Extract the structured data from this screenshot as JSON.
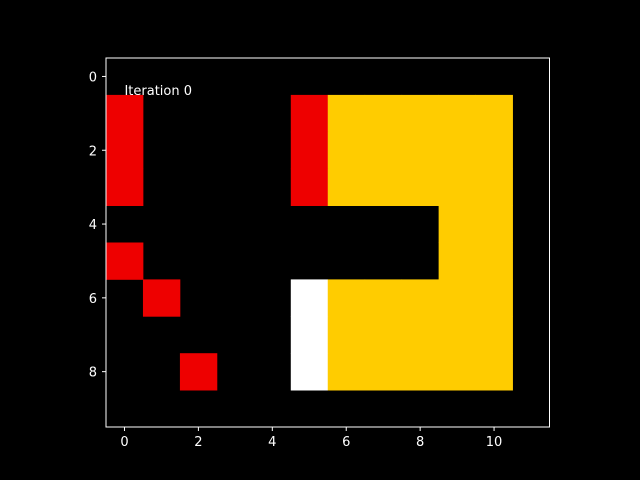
{
  "chart_data": {
    "type": "heatmap",
    "title": "",
    "xlabel": "",
    "ylabel": "",
    "annotation": "Iteration 0",
    "annotation_pos": [
      0,
      0.5
    ],
    "xlim": [
      -0.5,
      11.5
    ],
    "ylim": [
      -0.5,
      9.5
    ],
    "y_inverted": true,
    "x_ticks": [
      0,
      2,
      4,
      6,
      8,
      10
    ],
    "y_ticks": [
      0,
      2,
      4,
      6,
      8
    ],
    "background": "#000000",
    "colors": {
      "1": "#ee0000",
      "2": "#ffcc00",
      "3": "#ffffff"
    },
    "grid": [
      [
        0,
        0,
        0,
        0,
        0,
        0,
        0,
        0,
        0,
        0,
        0
      ],
      [
        1,
        0,
        0,
        0,
        0,
        1,
        2,
        2,
        2,
        2,
        2
      ],
      [
        1,
        0,
        0,
        0,
        0,
        1,
        2,
        2,
        2,
        2,
        2
      ],
      [
        1,
        0,
        0,
        0,
        0,
        1,
        2,
        2,
        2,
        2,
        2
      ],
      [
        0,
        0,
        0,
        0,
        0,
        0,
        0,
        0,
        0,
        2,
        2
      ],
      [
        1,
        0,
        0,
        0,
        0,
        0,
        0,
        0,
        0,
        2,
        2
      ],
      [
        0,
        1,
        0,
        0,
        0,
        3,
        2,
        2,
        2,
        2,
        2
      ],
      [
        0,
        0,
        0,
        0,
        0,
        3,
        2,
        2,
        2,
        2,
        2
      ],
      [
        0,
        0,
        1,
        0,
        0,
        3,
        2,
        2,
        2,
        2,
        2
      ]
    ]
  }
}
